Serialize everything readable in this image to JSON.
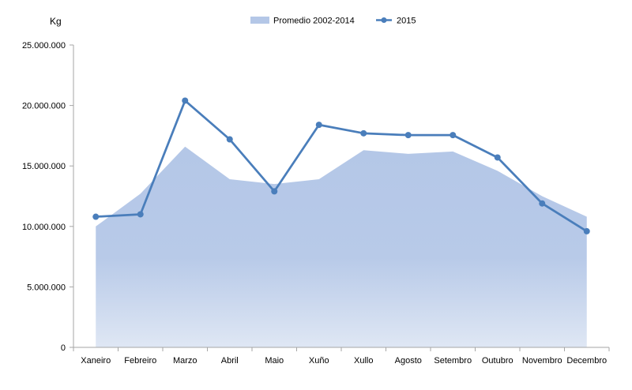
{
  "chart_data": {
    "type": "area+line",
    "ylabel": "Kg",
    "ylim": [
      0,
      25000000
    ],
    "yticks": [
      0,
      5000000,
      10000000,
      15000000,
      20000000,
      25000000
    ],
    "ytick_labels": [
      "0",
      "5.000.000",
      "10.000.000",
      "15.000.000",
      "20.000.000",
      "25.000.000"
    ],
    "categories": [
      "Xaneiro",
      "Febreiro",
      "Marzo",
      "Abril",
      "Maio",
      "Xuño",
      "Xullo",
      "Agosto",
      "Setembro",
      "Outubro",
      "Novembro",
      "Decembro"
    ],
    "legend_position": "top-center",
    "grid": false,
    "series": [
      {
        "name": "Promedio 2002-2014",
        "kind": "area",
        "color": "#b4c7e7",
        "values": [
          10000000,
          12700000,
          16600000,
          13900000,
          13500000,
          13900000,
          16300000,
          16000000,
          16200000,
          14600000,
          12500000,
          10800000
        ]
      },
      {
        "name": "2015",
        "kind": "line",
        "color": "#4a7ebb",
        "values": [
          10800000,
          11000000,
          20400000,
          17200000,
          12900000,
          18400000,
          17700000,
          17550000,
          17550000,
          15700000,
          11900000,
          9600000
        ]
      }
    ]
  }
}
